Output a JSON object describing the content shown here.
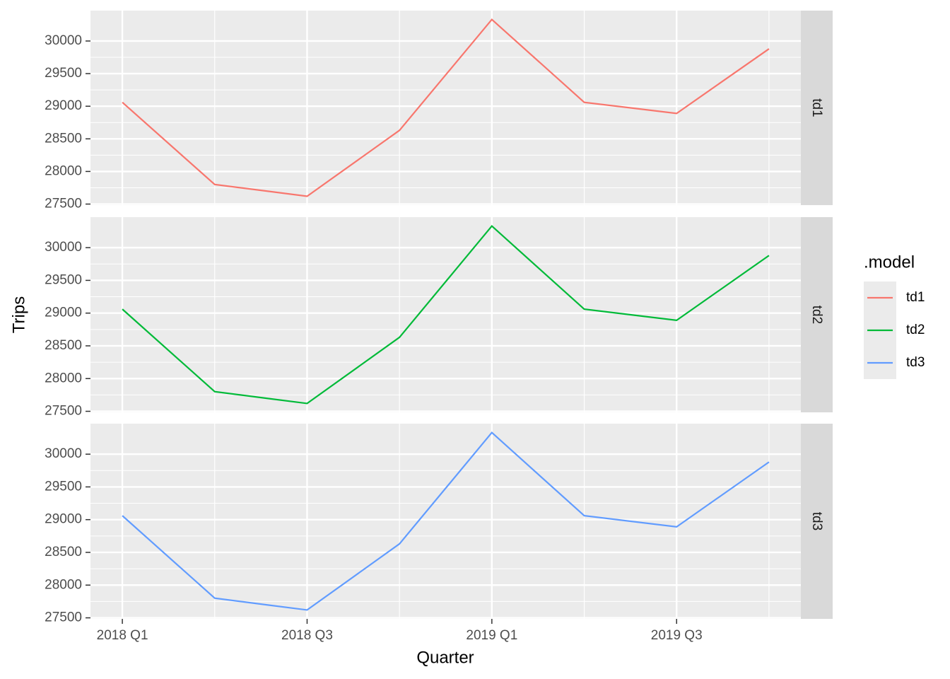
{
  "chart_data": {
    "type": "line",
    "x_label": "Quarter",
    "y_label": "Trips",
    "legend_title": ".model",
    "categories": [
      "2018 Q1",
      null,
      "2018 Q3",
      null,
      "2019 Q1",
      null,
      "2019 Q3",
      null
    ],
    "series": [
      {
        "name": "td1",
        "color": "#f8766d",
        "values": [
          29060,
          27800,
          27620,
          28630,
          30330,
          29060,
          28890,
          29880
        ]
      },
      {
        "name": "td2",
        "color": "#00ba38",
        "values": [
          29060,
          27800,
          27620,
          28630,
          30330,
          29060,
          28890,
          29880
        ]
      },
      {
        "name": "td3",
        "color": "#619cff",
        "values": [
          29060,
          27800,
          27620,
          28630,
          30330,
          29060,
          28890,
          29880
        ]
      }
    ],
    "ylim": [
      27484,
      30466
    ],
    "yticks": [
      27500,
      28000,
      28500,
      29000,
      29500,
      30000
    ],
    "grid": true,
    "facet": true,
    "legend_position": "right"
  }
}
